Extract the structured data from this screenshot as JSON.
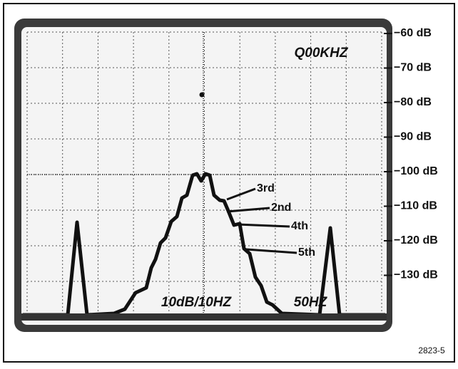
{
  "scale_labels": [
    "−60 dB",
    "−70 dB",
    "−80 dB",
    "−90 dB",
    "−100 dB",
    "−110 dB",
    "−120 dB",
    "−130 dB"
  ],
  "screen_text": {
    "frequency": "Q00KHZ",
    "scale": "10dB/10HZ",
    "span": "50HZ"
  },
  "annotations": [
    "3rd",
    "2nd",
    "4th",
    "5th"
  ],
  "figure_number": "2823-5"
}
